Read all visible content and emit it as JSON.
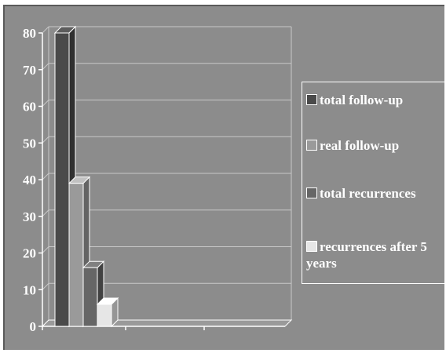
{
  "chart_data": {
    "type": "bar",
    "style": "3d-clustered",
    "categories": [
      ""
    ],
    "series": [
      {
        "name": "total follow-up",
        "values": [
          80
        ],
        "color": "#4a4a4a"
      },
      {
        "name": "real follow-up",
        "values": [
          39
        ],
        "color": "#9a9a9a"
      },
      {
        "name": "total recurrences",
        "values": [
          16
        ],
        "color": "#666666"
      },
      {
        "name": "recurrences after 5 years",
        "values": [
          6
        ],
        "color": "#e6e6e6"
      }
    ],
    "ylim": [
      0,
      80
    ],
    "yticks": [
      "0",
      "10",
      "20",
      "30",
      "40",
      "50",
      "60",
      "70",
      "80"
    ],
    "grid": true,
    "legend_position": "right",
    "background": "#8c8c8c"
  },
  "legend": {
    "items": [
      {
        "label": "total follow-up",
        "color": "#4a4a4a"
      },
      {
        "label": "real follow-up",
        "color": "#9a9a9a"
      },
      {
        "label": "total recurrences",
        "color": "#666666"
      },
      {
        "label": "recurrences after 5 years",
        "color": "#e6e6e6"
      }
    ]
  }
}
